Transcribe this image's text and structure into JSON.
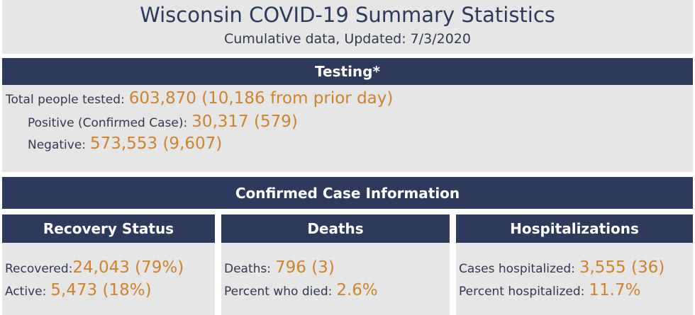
{
  "header": {
    "title": "Wisconsin COVID-19 Summary Statistics",
    "subtitle": "Cumulative data, Updated: 7/3/2020"
  },
  "testing": {
    "title": "Testing*",
    "rows": [
      {
        "label": "Total people tested:",
        "value": "603,870 (10,186 from prior day)"
      },
      {
        "label": "Positive (Confirmed Case):",
        "value": "30,317 (579)"
      },
      {
        "label": "Negative:",
        "value": "573,553 (9,607)"
      }
    ]
  },
  "confirmed": {
    "title": "Confirmed Case Information",
    "panels": [
      {
        "title": "Recovery Status",
        "rows": [
          {
            "label": "Recovered:",
            "value": "24,043 (79%)"
          },
          {
            "label": "Active:",
            "value": "5,473 (18%)"
          }
        ]
      },
      {
        "title": "Deaths",
        "rows": [
          {
            "label": "Deaths:",
            "value": "796 (3)"
          },
          {
            "label": "Percent who died:",
            "value": "2.6%"
          }
        ]
      },
      {
        "title": "Hospitalizations",
        "rows": [
          {
            "label": "Cases hospitalized:",
            "value": "3,555 (36)"
          },
          {
            "label": "Percent hospitalized:",
            "value": "11.7%"
          }
        ]
      }
    ]
  }
}
